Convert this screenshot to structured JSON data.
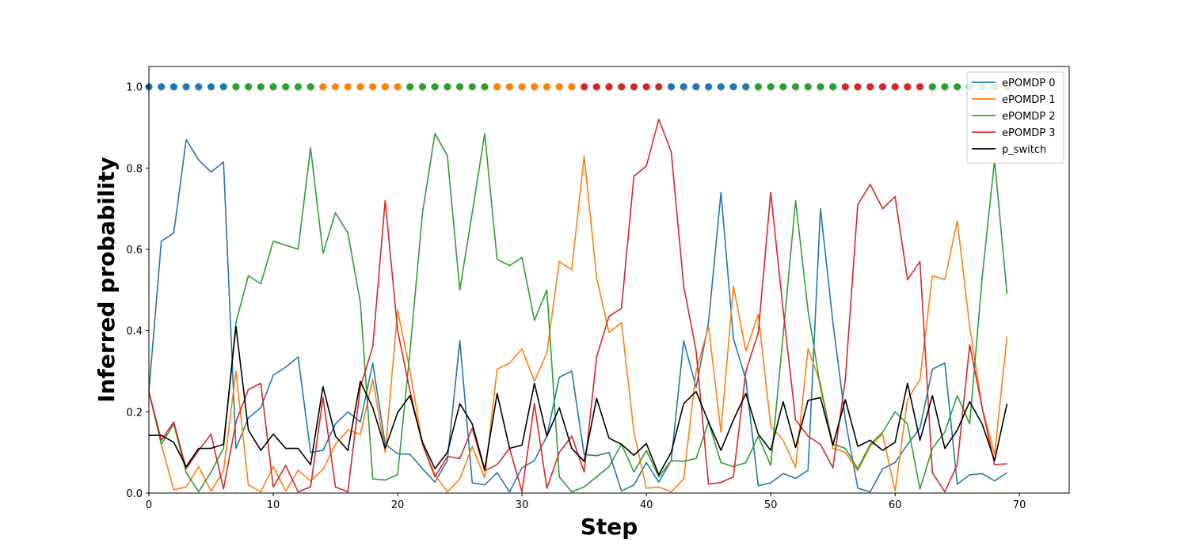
{
  "chart_data": {
    "type": "line",
    "title": "",
    "xlabel": "Step",
    "ylabel": "Inferred probability",
    "xlim": [
      0,
      74
    ],
    "ylim": [
      0,
      1.05
    ],
    "xticks": [
      0,
      10,
      20,
      30,
      40,
      50,
      60,
      70
    ],
    "xtick_labels": [
      "0",
      "10",
      "20",
      "30",
      "40",
      "50",
      "60",
      "70"
    ],
    "yticks": [
      0,
      0.2,
      0.4,
      0.6,
      0.8,
      1.0
    ],
    "ytick_labels": [
      "0.0",
      "0.2",
      "0.4",
      "0.6",
      "0.8",
      "1.0"
    ],
    "grid": false,
    "legend_position": "top-right",
    "x": [
      0,
      1,
      2,
      3,
      4,
      5,
      6,
      7,
      8,
      9,
      10,
      11,
      12,
      13,
      14,
      15,
      16,
      17,
      18,
      19,
      20,
      21,
      22,
      23,
      24,
      25,
      26,
      27,
      28,
      29,
      30,
      31,
      32,
      33,
      34,
      35,
      36,
      37,
      38,
      39,
      40,
      41,
      42,
      43,
      44,
      45,
      46,
      47,
      48,
      49,
      50,
      51,
      52,
      53,
      54,
      55,
      56,
      57,
      58,
      59,
      60,
      61,
      62,
      63,
      64,
      65,
      66,
      67,
      68,
      69
    ],
    "series": [
      {
        "name": "ePOMDP 0",
        "color": "#1f77b4",
        "values": [
          0.25,
          0.62,
          0.64,
          0.87,
          0.82,
          0.79,
          0.815,
          0.11,
          0.185,
          0.21,
          0.29,
          0.31,
          0.335,
          0.1,
          0.105,
          0.17,
          0.2,
          0.175,
          0.32,
          0.12,
          0.097,
          0.095,
          0.06,
          0.027,
          0.08,
          0.375,
          0.025,
          0.02,
          0.05,
          0.003,
          0.062,
          0.08,
          0.14,
          0.285,
          0.3,
          0.095,
          0.092,
          0.1,
          0.005,
          0.02,
          0.075,
          0.027,
          0.08,
          0.375,
          0.26,
          0.42,
          0.74,
          0.38,
          0.28,
          0.018,
          0.025,
          0.048,
          0.036,
          0.056,
          0.7,
          0.42,
          0.18,
          0.012,
          0.003,
          0.06,
          0.075,
          0.12,
          0.16,
          0.305,
          0.32,
          0.022,
          0.045,
          0.048,
          0.03,
          0.05
        ]
      },
      {
        "name": "ePOMDP 1",
        "color": "#ff7f0e",
        "values": [
          0.25,
          0.12,
          0.008,
          0.015,
          0.065,
          0.005,
          0.055,
          0.3,
          0.02,
          0.003,
          0.065,
          0.005,
          0.056,
          0.03,
          0.058,
          0.12,
          0.155,
          0.145,
          0.28,
          0.1,
          0.45,
          0.3,
          0.12,
          0.045,
          0.003,
          0.035,
          0.115,
          0.038,
          0.305,
          0.32,
          0.355,
          0.275,
          0.345,
          0.57,
          0.55,
          0.83,
          0.53,
          0.395,
          0.42,
          0.15,
          0.012,
          0.015,
          0.003,
          0.035,
          0.3,
          0.41,
          0.15,
          0.51,
          0.35,
          0.44,
          0.165,
          0.13,
          0.063,
          0.355,
          0.27,
          0.11,
          0.1,
          0.055,
          0.115,
          0.145,
          0.005,
          0.23,
          0.28,
          0.535,
          0.525,
          0.67,
          0.41,
          0.21,
          0.095,
          0.385
        ]
      },
      {
        "name": "ePOMDP 2",
        "color": "#2ca02c",
        "values": [
          0.25,
          0.12,
          0.17,
          0.05,
          0.003,
          0.052,
          0.11,
          0.42,
          0.535,
          0.515,
          0.62,
          0.61,
          0.6,
          0.85,
          0.59,
          0.69,
          0.64,
          0.47,
          0.035,
          0.032,
          0.045,
          0.35,
          0.69,
          0.885,
          0.83,
          0.5,
          0.69,
          0.885,
          0.575,
          0.56,
          0.58,
          0.425,
          0.5,
          0.04,
          0.003,
          0.015,
          0.04,
          0.065,
          0.12,
          0.052,
          0.105,
          0.04,
          0.08,
          0.078,
          0.085,
          0.175,
          0.075,
          0.065,
          0.075,
          0.14,
          0.068,
          0.39,
          0.72,
          0.45,
          0.26,
          0.12,
          0.11,
          0.06,
          0.12,
          0.15,
          0.2,
          0.17,
          0.01,
          0.11,
          0.15,
          0.24,
          0.17,
          0.53,
          0.82,
          0.49
        ]
      },
      {
        "name": "ePOMDP 3",
        "color": "#d62728",
        "values": [
          0.25,
          0.13,
          0.175,
          0.06,
          0.105,
          0.145,
          0.01,
          0.175,
          0.255,
          0.27,
          0.015,
          0.068,
          0.003,
          0.015,
          0.235,
          0.015,
          0.003,
          0.26,
          0.36,
          0.72,
          0.4,
          0.25,
          0.12,
          0.04,
          0.09,
          0.085,
          0.16,
          0.055,
          0.07,
          0.11,
          0.003,
          0.22,
          0.012,
          0.1,
          0.14,
          0.052,
          0.335,
          0.435,
          0.455,
          0.78,
          0.805,
          0.92,
          0.84,
          0.51,
          0.35,
          0.022,
          0.026,
          0.04,
          0.3,
          0.395,
          0.74,
          0.45,
          0.18,
          0.14,
          0.12,
          0.062,
          0.28,
          0.71,
          0.76,
          0.7,
          0.73,
          0.525,
          0.57,
          0.05,
          0.003,
          0.07,
          0.365,
          0.21,
          0.07,
          0.072
        ]
      },
      {
        "name": "p_switch",
        "color": "#000000",
        "values": [
          0.142,
          0.142,
          0.125,
          0.065,
          0.11,
          0.11,
          0.12,
          0.41,
          0.155,
          0.105,
          0.145,
          0.11,
          0.11,
          0.07,
          0.262,
          0.14,
          0.105,
          0.275,
          0.21,
          0.11,
          0.198,
          0.24,
          0.125,
          0.06,
          0.1,
          0.22,
          0.17,
          0.058,
          0.245,
          0.11,
          0.118,
          0.27,
          0.14,
          0.21,
          0.11,
          0.078,
          0.233,
          0.135,
          0.12,
          0.093,
          0.122,
          0.045,
          0.1,
          0.22,
          0.25,
          0.175,
          0.105,
          0.18,
          0.245,
          0.145,
          0.105,
          0.225,
          0.112,
          0.228,
          0.235,
          0.118,
          0.23,
          0.115,
          0.13,
          0.105,
          0.125,
          0.27,
          0.13,
          0.24,
          0.11,
          0.155,
          0.225,
          0.17,
          0.08,
          0.22
        ]
      }
    ],
    "regime_markers": {
      "y": 1.0,
      "regime_index": [
        0,
        0,
        0,
        0,
        0,
        0,
        0,
        2,
        2,
        2,
        2,
        2,
        2,
        2,
        1,
        1,
        1,
        1,
        1,
        1,
        1,
        2,
        2,
        2,
        2,
        2,
        2,
        2,
        1,
        1,
        1,
        1,
        1,
        1,
        1,
        3,
        3,
        3,
        3,
        3,
        3,
        3,
        0,
        0,
        0,
        0,
        0,
        0,
        0,
        2,
        2,
        2,
        2,
        2,
        2,
        2,
        3,
        3,
        3,
        3,
        3,
        3,
        3,
        2,
        2,
        2,
        2,
        2,
        2,
        2
      ]
    }
  }
}
